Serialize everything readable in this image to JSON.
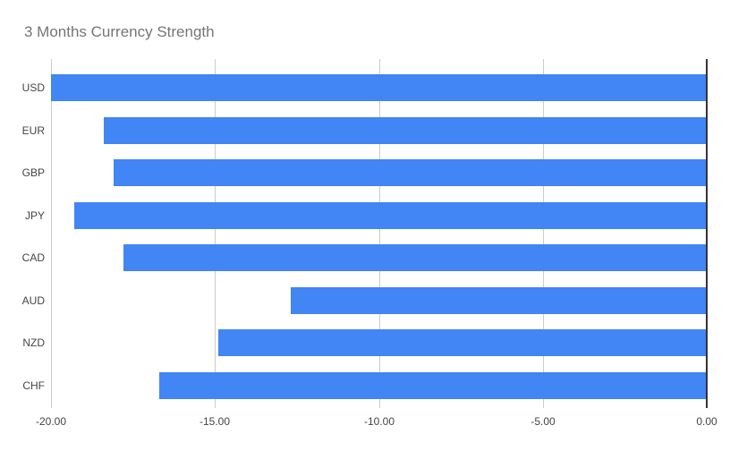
{
  "chart_data": {
    "type": "bar",
    "orientation": "horizontal",
    "title": "3 Months Currency Strength",
    "categories": [
      "USD",
      "EUR",
      "GBP",
      "JPY",
      "CAD",
      "AUD",
      "NZD",
      "CHF"
    ],
    "values": [
      -20.0,
      -18.4,
      -18.1,
      -19.3,
      -17.8,
      -12.7,
      -14.9,
      -16.7
    ],
    "xlim": [
      -20,
      0
    ],
    "x_ticks": [
      -20,
      -15,
      -10,
      -5,
      0
    ],
    "x_tick_labels": [
      "-20.00",
      "-15.00",
      "-10.00",
      "-5.00",
      "0.00"
    ],
    "grid": true,
    "legend": "none",
    "colors": {
      "bar": "#4285f4",
      "title": "#757575",
      "axis_label": "#444444",
      "gridline": "#cccccc",
      "zero_line": "#333333",
      "background": "#ffffff"
    }
  }
}
